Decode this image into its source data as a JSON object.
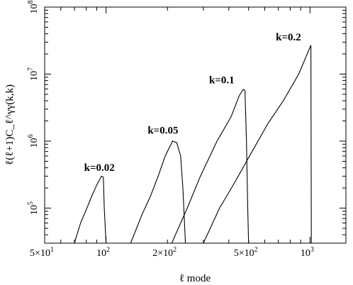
{
  "chart_data": {
    "type": "line",
    "title": "",
    "xlabel": "ℓ mode",
    "ylabel": "ℓ(ℓ+1)C_ℓ^γγ(k,k)",
    "x_scale": "log",
    "y_scale": "log",
    "xlim": [
      50,
      1500
    ],
    "ylim": [
      30000,
      100000000
    ],
    "x_ticks": [
      {
        "value": 50,
        "mant": "5×10",
        "exp": "1"
      },
      {
        "value": 100,
        "mant": "10",
        "exp": "2"
      },
      {
        "value": 200,
        "mant": "2×10",
        "exp": "2"
      },
      {
        "value": 500,
        "mant": "5×10",
        "exp": "2"
      },
      {
        "value": 1000,
        "mant": "10",
        "exp": "3"
      }
    ],
    "y_ticks": [
      {
        "value": 100000,
        "mant": "10",
        "exp": "5"
      },
      {
        "value": 1000000,
        "mant": "10",
        "exp": "6"
      },
      {
        "value": 10000000,
        "mant": "10",
        "exp": "7"
      },
      {
        "value": 100000000,
        "mant": "10",
        "exp": "8"
      }
    ],
    "series": [
      {
        "name": "k=0.02",
        "label_at": [
          78,
          360000
        ],
        "points": [
          [
            70,
            30000
          ],
          [
            75,
            60000
          ],
          [
            80,
            95000
          ],
          [
            85,
            150000
          ],
          [
            90,
            220000
          ],
          [
            95,
            300000
          ],
          [
            97,
            290000
          ],
          [
            98,
            100000
          ],
          [
            100,
            30000
          ]
        ]
      },
      {
        "name": "k=0.05",
        "label_at": [
          160,
          1300000
        ],
        "points": [
          [
            132,
            30000
          ],
          [
            150,
            80000
          ],
          [
            165,
            150000
          ],
          [
            180,
            300000
          ],
          [
            195,
            600000
          ],
          [
            212,
            1000000
          ],
          [
            222,
            950000
          ],
          [
            232,
            600000
          ],
          [
            238,
            200000
          ],
          [
            245,
            30000
          ]
        ]
      },
      {
        "name": "k=0.1",
        "label_at": [
          320,
          7300000
        ],
        "points": [
          [
            210,
            30000
          ],
          [
            250,
            100000
          ],
          [
            290,
            300000
          ],
          [
            350,
            1000000
          ],
          [
            410,
            2300000
          ],
          [
            450,
            4800000
          ],
          [
            470,
            5900000
          ],
          [
            480,
            5700000
          ],
          [
            488,
            1000000
          ],
          [
            495,
            100000
          ],
          [
            500,
            30000
          ]
        ]
      },
      {
        "name": "k=0.2",
        "label_at": [
          680,
          32000000
        ],
        "points": [
          [
            300,
            30000
          ],
          [
            360,
            100000
          ],
          [
            430,
            250000
          ],
          [
            520,
            700000
          ],
          [
            620,
            1800000
          ],
          [
            740,
            4000000
          ],
          [
            880,
            10000000
          ],
          [
            1000,
            25000000
          ],
          [
            1010,
            27000000
          ],
          [
            1012,
            3000000
          ],
          [
            1015,
            30000
          ]
        ]
      }
    ]
  }
}
